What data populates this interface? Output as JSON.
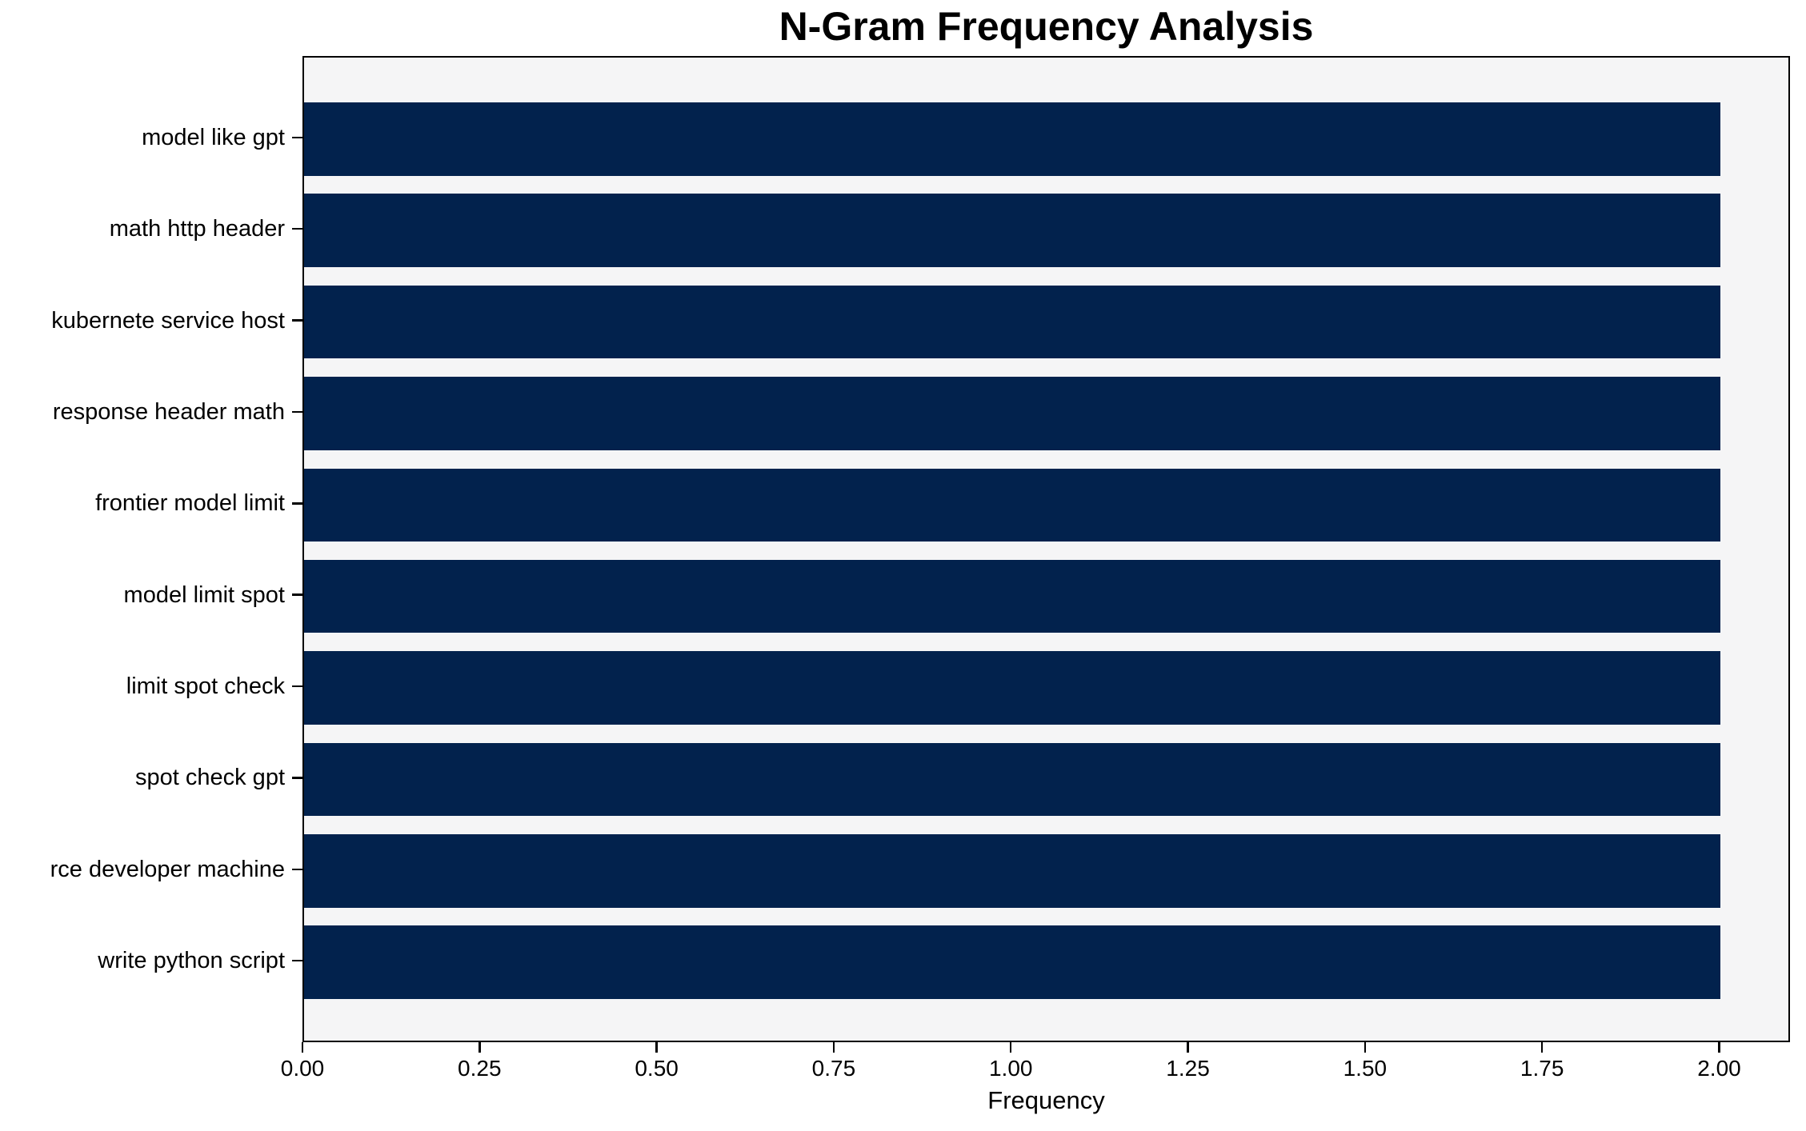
{
  "title": "N-Gram Frequency Analysis",
  "chart_data": {
    "type": "bar",
    "orientation": "horizontal",
    "title": "N-Gram Frequency Analysis",
    "xlabel": "Frequency",
    "ylabel": "",
    "categories": [
      "model like gpt",
      "math http header",
      "kubernete service host",
      "response header math",
      "frontier model limit",
      "model limit spot",
      "limit spot check",
      "spot check gpt",
      "rce developer machine",
      "write python script"
    ],
    "values": [
      2.0,
      2.0,
      2.0,
      2.0,
      2.0,
      2.0,
      2.0,
      2.0,
      2.0,
      2.0
    ],
    "xlim": [
      0,
      2.1
    ],
    "xticks": [
      "0.00",
      "0.25",
      "0.50",
      "0.75",
      "1.00",
      "1.25",
      "1.50",
      "1.75",
      "2.00"
    ],
    "xtick_values": [
      0,
      0.25,
      0.5,
      0.75,
      1.0,
      1.25,
      1.5,
      1.75,
      2.0
    ],
    "grid": false,
    "legend": "none",
    "bar_color": "#02224d",
    "plot_background": "#f5f5f6",
    "figure_background": "#ffffff",
    "axis_color": "#000000"
  }
}
